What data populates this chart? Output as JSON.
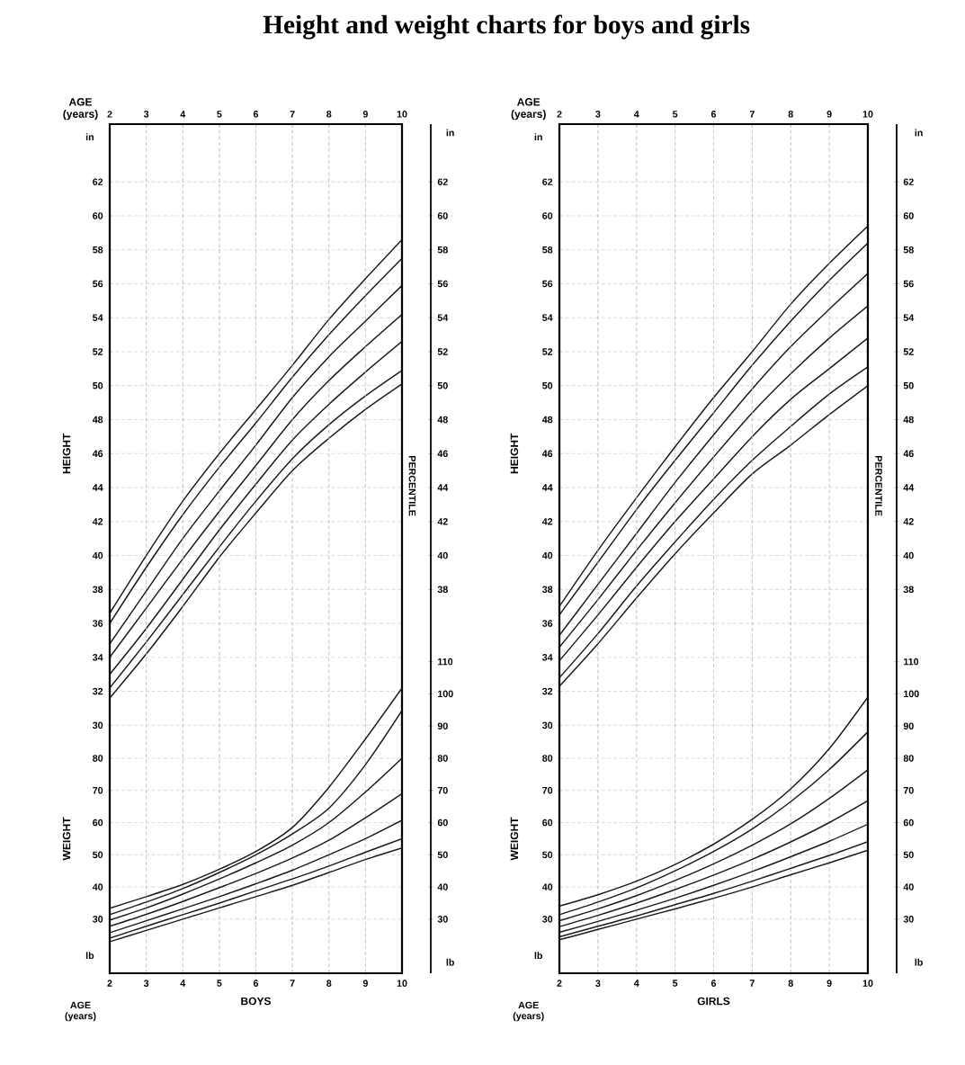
{
  "chart_data": [
    {
      "type": "line",
      "title": "Height and weight charts for boys and girls",
      "x2label": "AGE (years)",
      "ylabel": "HEIGHT",
      "annotations": [
        "in",
        "in",
        "PERCENTILE"
      ],
      "x": [
        2,
        3,
        4,
        5,
        6,
        7,
        8,
        9,
        10
      ],
      "xlim": [
        2,
        10
      ],
      "x2lim": [
        2,
        10
      ],
      "x2ticks": [
        2,
        3,
        4,
        5,
        6,
        7,
        8,
        9,
        10
      ],
      "ylim": [
        15.4,
        65.4
      ],
      "yticks": [
        30,
        32,
        34,
        36,
        38,
        40,
        42,
        44,
        46,
        48,
        50,
        52,
        54,
        56,
        58,
        60,
        62
      ],
      "y2lim": [
        15.4,
        65.4
      ],
      "y2ticks": [
        38,
        40,
        42,
        44,
        46,
        48,
        50,
        52,
        54,
        56,
        58,
        60,
        62
      ],
      "grid": true,
      "series": [
        {
          "color": "#1a1a1a",
          "values": [
            31.6,
            34.2,
            37.0,
            39.9,
            42.5,
            45.0,
            46.9,
            48.6,
            50.1
          ]
        },
        {
          "color": "#1a1a1a",
          "values": [
            32.2,
            34.9,
            37.7,
            40.5,
            43.2,
            45.7,
            47.7,
            49.4,
            50.9
          ]
        },
        {
          "color": "#1a1a1a",
          "values": [
            33.0,
            35.7,
            38.6,
            41.5,
            44.2,
            46.8,
            48.9,
            50.8,
            52.6
          ]
        },
        {
          "color": "#1a1a1a",
          "values": [
            34.0,
            36.9,
            39.8,
            42.6,
            45.3,
            48.0,
            50.3,
            52.3,
            54.2
          ]
        },
        {
          "color": "#1a1a1a",
          "values": [
            34.8,
            37.9,
            41.0,
            43.8,
            46.5,
            49.3,
            51.7,
            53.8,
            55.9
          ]
        },
        {
          "color": "#1a1a1a",
          "values": [
            36.0,
            39.3,
            42.4,
            45.2,
            47.8,
            50.5,
            53.0,
            55.3,
            57.5
          ]
        },
        {
          "color": "#1a1a1a",
          "values": [
            36.6,
            40.0,
            43.2,
            46.0,
            48.6,
            51.2,
            53.9,
            56.3,
            58.6
          ]
        }
      ]
    },
    {
      "type": "line",
      "xlabel": "BOYS",
      "ylabel": "WEIGHT",
      "annotations": [
        "lb",
        "lb",
        "AGE (years)"
      ],
      "x": [
        2,
        3,
        4,
        5,
        6,
        7,
        8,
        9,
        10
      ],
      "xlim": [
        2,
        10
      ],
      "xticks": [
        2,
        3,
        4,
        5,
        6,
        7,
        8,
        9,
        10
      ],
      "ylim": [
        13.2,
        277
      ],
      "yticks": [
        30,
        40,
        50,
        60,
        70,
        80
      ],
      "y2lim": [
        13.2,
        277
      ],
      "y2ticks": [
        30,
        40,
        50,
        60,
        70,
        80,
        90,
        100,
        110
      ],
      "grid": true,
      "series": [
        {
          "color": "#1a1a1a",
          "values": [
            23.0,
            26.5,
            30.0,
            33.5,
            37.0,
            40.5,
            44.5,
            48.5,
            52.1
          ]
        },
        {
          "color": "#1a1a1a",
          "values": [
            24.1,
            27.8,
            31.4,
            35.0,
            38.8,
            42.5,
            46.5,
            50.8,
            55.0
          ]
        },
        {
          "color": "#1a1a1a",
          "values": [
            25.8,
            29.5,
            33.2,
            37.0,
            41.0,
            45.2,
            50.0,
            55.0,
            60.7
          ]
        },
        {
          "color": "#1a1a1a",
          "values": [
            27.8,
            31.5,
            35.5,
            39.8,
            44.2,
            49.0,
            54.5,
            61.5,
            69.0
          ]
        },
        {
          "color": "#1a1a1a",
          "values": [
            29.7,
            33.5,
            37.8,
            42.5,
            47.5,
            53.0,
            60.0,
            69.5,
            80.0
          ]
        },
        {
          "color": "#1a1a1a",
          "values": [
            31.4,
            35.3,
            39.5,
            44.5,
            50.0,
            56.5,
            64.5,
            78.0,
            94.8
          ]
        },
        {
          "color": "#1a1a1a",
          "values": [
            33.4,
            37.0,
            40.8,
            45.5,
            51.0,
            58.5,
            71.0,
            86.0,
            101.8
          ]
        }
      ]
    },
    {
      "type": "line",
      "x2label": "AGE (years)",
      "ylabel": "HEIGHT",
      "annotations": [
        "in",
        "in",
        "PERCENTILE"
      ],
      "x": [
        2,
        3,
        4,
        5,
        6,
        7,
        8,
        9,
        10
      ],
      "xlim": [
        2,
        10
      ],
      "x2lim": [
        2,
        10
      ],
      "x2ticks": [
        2,
        3,
        4,
        5,
        6,
        7,
        8,
        9,
        10
      ],
      "ylim": [
        15.4,
        65.4
      ],
      "yticks": [
        30,
        32,
        34,
        36,
        38,
        40,
        42,
        44,
        46,
        48,
        50,
        52,
        54,
        56,
        58,
        60,
        62
      ],
      "y2lim": [
        15.4,
        65.4
      ],
      "y2ticks": [
        38,
        40,
        42,
        44,
        46,
        48,
        50,
        52,
        54,
        56,
        58,
        60,
        62
      ],
      "grid": true,
      "series": [
        {
          "color": "#1a1a1a",
          "values": [
            32.3,
            34.8,
            37.5,
            40.1,
            42.5,
            44.8,
            46.5,
            48.3,
            50.0
          ]
        },
        {
          "color": "#1a1a1a",
          "values": [
            32.8,
            35.4,
            38.2,
            40.8,
            43.3,
            45.6,
            47.6,
            49.5,
            51.1
          ]
        },
        {
          "color": "#1a1a1a",
          "values": [
            33.8,
            36.5,
            39.3,
            42.0,
            44.5,
            47.0,
            49.2,
            51.0,
            52.8
          ]
        },
        {
          "color": "#1a1a1a",
          "values": [
            34.6,
            37.4,
            40.3,
            43.1,
            45.8,
            48.4,
            50.7,
            52.8,
            54.7
          ]
        },
        {
          "color": "#1a1a1a",
          "values": [
            35.3,
            38.3,
            41.3,
            44.3,
            47.1,
            49.8,
            52.3,
            54.5,
            56.6
          ]
        },
        {
          "color": "#1a1a1a",
          "values": [
            36.5,
            39.6,
            42.7,
            45.6,
            48.4,
            51.2,
            53.8,
            56.2,
            58.4
          ]
        },
        {
          "color": "#1a1a1a",
          "values": [
            37.0,
            40.3,
            43.4,
            46.4,
            49.3,
            52.0,
            54.8,
            57.2,
            59.4
          ]
        }
      ]
    },
    {
      "type": "line",
      "xlabel": "GIRLS",
      "ylabel": "WEIGHT",
      "annotations": [
        "lb",
        "lb",
        "AGE (years)"
      ],
      "x": [
        2,
        3,
        4,
        5,
        6,
        7,
        8,
        9,
        10
      ],
      "xlim": [
        2,
        10
      ],
      "xticks": [
        2,
        3,
        4,
        5,
        6,
        7,
        8,
        9,
        10
      ],
      "ylim": [
        13.2,
        277
      ],
      "yticks": [
        30,
        40,
        50,
        60,
        70,
        80
      ],
      "y2lim": [
        13.2,
        277
      ],
      "y2ticks": [
        30,
        40,
        50,
        60,
        70,
        80,
        90,
        100,
        110
      ],
      "grid": true,
      "series": [
        {
          "color": "#1a1a1a",
          "values": [
            23.6,
            26.8,
            30.0,
            33.2,
            36.5,
            40.0,
            43.8,
            47.5,
            51.4
          ]
        },
        {
          "color": "#1a1a1a",
          "values": [
            24.5,
            27.8,
            31.0,
            34.5,
            38.0,
            41.8,
            45.8,
            49.8,
            54.1
          ]
        },
        {
          "color": "#1a1a1a",
          "values": [
            25.9,
            29.3,
            32.8,
            36.5,
            40.5,
            44.8,
            49.4,
            54.2,
            59.5
          ]
        },
        {
          "color": "#1a1a1a",
          "values": [
            27.7,
            31.2,
            35.0,
            39.2,
            43.7,
            48.6,
            54.0,
            60.0,
            66.8
          ]
        },
        {
          "color": "#1a1a1a",
          "values": [
            29.5,
            33.2,
            37.3,
            42.0,
            47.2,
            53.0,
            59.6,
            67.5,
            76.4
          ]
        },
        {
          "color": "#1a1a1a",
          "values": [
            31.4,
            35.3,
            39.7,
            45.0,
            51.0,
            58.0,
            66.5,
            76.5,
            88.2
          ]
        },
        {
          "color": "#1a1a1a",
          "values": [
            34.1,
            37.6,
            41.8,
            47.0,
            53.3,
            61.0,
            70.5,
            83.0,
            99.0
          ]
        }
      ]
    }
  ]
}
